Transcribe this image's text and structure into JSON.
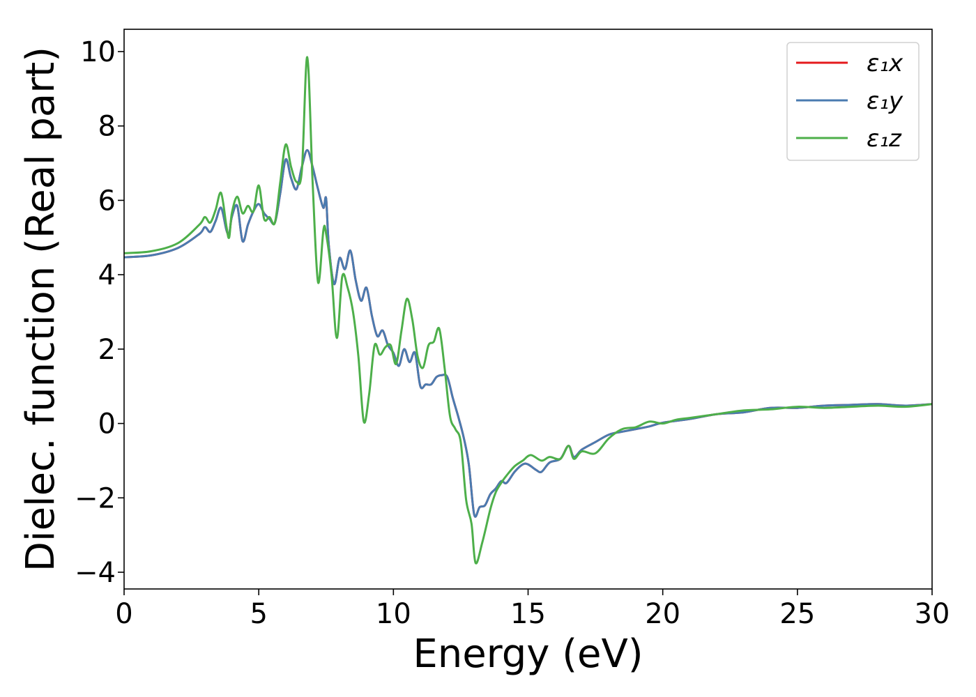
{
  "chart_data": {
    "type": "line",
    "xlabel": "Energy (eV)",
    "ylabel": "Dielec. function (Real part)",
    "xlim": [
      0,
      30
    ],
    "ylim": [
      -4.45,
      10.6
    ],
    "xticks": [
      0,
      5,
      10,
      15,
      20,
      25,
      30
    ],
    "yticks": [
      -4,
      -2,
      0,
      2,
      4,
      6,
      8,
      10
    ],
    "xtick_labels": [
      "0",
      "5",
      "10",
      "15",
      "20",
      "25",
      "30"
    ],
    "ytick_labels": [
      "−4",
      "−2",
      "0",
      "2",
      "4",
      "6",
      "8",
      "10"
    ],
    "grid": false,
    "legend_position": "top-right",
    "series": [
      {
        "name": "ε₁x",
        "color": "#e41a1c",
        "points": [
          [
            0,
            4.47
          ],
          [
            1,
            4.52
          ],
          [
            2,
            4.72
          ],
          [
            2.8,
            5.1
          ],
          [
            3.0,
            5.28
          ],
          [
            3.2,
            5.15
          ],
          [
            3.4,
            5.45
          ],
          [
            3.6,
            5.8
          ],
          [
            3.8,
            5.2
          ],
          [
            3.9,
            5.1
          ],
          [
            4.0,
            5.55
          ],
          [
            4.2,
            5.85
          ],
          [
            4.4,
            4.9
          ],
          [
            4.6,
            5.35
          ],
          [
            4.8,
            5.7
          ],
          [
            5.0,
            5.9
          ],
          [
            5.2,
            5.65
          ],
          [
            5.4,
            5.5
          ],
          [
            5.6,
            5.4
          ],
          [
            5.8,
            6.2
          ],
          [
            6.0,
            7.1
          ],
          [
            6.2,
            6.6
          ],
          [
            6.4,
            6.3
          ],
          [
            6.6,
            6.9
          ],
          [
            6.8,
            7.35
          ],
          [
            7.0,
            6.9
          ],
          [
            7.2,
            6.3
          ],
          [
            7.4,
            5.8
          ],
          [
            7.5,
            6.05
          ],
          [
            7.6,
            4.8
          ],
          [
            7.8,
            3.75
          ],
          [
            8.0,
            4.45
          ],
          [
            8.2,
            4.15
          ],
          [
            8.4,
            4.65
          ],
          [
            8.6,
            3.85
          ],
          [
            8.8,
            3.3
          ],
          [
            9.0,
            3.65
          ],
          [
            9.2,
            2.9
          ],
          [
            9.4,
            2.35
          ],
          [
            9.6,
            2.5
          ],
          [
            9.8,
            2.1
          ],
          [
            10.0,
            1.9
          ],
          [
            10.2,
            1.55
          ],
          [
            10.4,
            2.0
          ],
          [
            10.6,
            1.65
          ],
          [
            10.8,
            1.9
          ],
          [
            11.0,
            1.0
          ],
          [
            11.2,
            1.05
          ],
          [
            11.4,
            1.05
          ],
          [
            11.6,
            1.25
          ],
          [
            11.8,
            1.3
          ],
          [
            12.0,
            1.25
          ],
          [
            12.2,
            0.7
          ],
          [
            12.4,
            0.2
          ],
          [
            12.6,
            -0.35
          ],
          [
            12.8,
            -1.1
          ],
          [
            13.0,
            -2.45
          ],
          [
            13.2,
            -2.25
          ],
          [
            13.4,
            -2.2
          ],
          [
            13.6,
            -1.9
          ],
          [
            13.8,
            -1.75
          ],
          [
            14.0,
            -1.55
          ],
          [
            14.2,
            -1.6
          ],
          [
            14.5,
            -1.3
          ],
          [
            14.8,
            -1.1
          ],
          [
            15.0,
            -1.1
          ],
          [
            15.3,
            -1.25
          ],
          [
            15.5,
            -1.3
          ],
          [
            15.8,
            -1.05
          ],
          [
            16.2,
            -0.95
          ],
          [
            16.5,
            -0.6
          ],
          [
            16.7,
            -0.9
          ],
          [
            17.0,
            -0.7
          ],
          [
            17.5,
            -0.5
          ],
          [
            18.0,
            -0.3
          ],
          [
            18.5,
            -0.22
          ],
          [
            19.0,
            -0.15
          ],
          [
            19.5,
            -0.08
          ],
          [
            20.0,
            0.02
          ],
          [
            21.0,
            0.12
          ],
          [
            22.0,
            0.25
          ],
          [
            23.0,
            0.3
          ],
          [
            24.0,
            0.42
          ],
          [
            25.0,
            0.42
          ],
          [
            26.0,
            0.48
          ],
          [
            27.0,
            0.5
          ],
          [
            28.0,
            0.52
          ],
          [
            29.0,
            0.48
          ],
          [
            30.0,
            0.52
          ]
        ]
      },
      {
        "name": "ε₁y",
        "color": "#4a7bb0",
        "points": [
          [
            0,
            4.47
          ],
          [
            1,
            4.52
          ],
          [
            2,
            4.72
          ],
          [
            2.8,
            5.1
          ],
          [
            3.0,
            5.28
          ],
          [
            3.2,
            5.15
          ],
          [
            3.4,
            5.45
          ],
          [
            3.6,
            5.8
          ],
          [
            3.8,
            5.2
          ],
          [
            3.9,
            5.1
          ],
          [
            4.0,
            5.55
          ],
          [
            4.2,
            5.85
          ],
          [
            4.4,
            4.9
          ],
          [
            4.6,
            5.35
          ],
          [
            4.8,
            5.7
          ],
          [
            5.0,
            5.9
          ],
          [
            5.2,
            5.65
          ],
          [
            5.4,
            5.5
          ],
          [
            5.6,
            5.4
          ],
          [
            5.8,
            6.2
          ],
          [
            6.0,
            7.1
          ],
          [
            6.2,
            6.6
          ],
          [
            6.4,
            6.3
          ],
          [
            6.6,
            6.9
          ],
          [
            6.8,
            7.35
          ],
          [
            7.0,
            6.9
          ],
          [
            7.2,
            6.3
          ],
          [
            7.4,
            5.8
          ],
          [
            7.5,
            6.05
          ],
          [
            7.6,
            4.8
          ],
          [
            7.8,
            3.75
          ],
          [
            8.0,
            4.45
          ],
          [
            8.2,
            4.15
          ],
          [
            8.4,
            4.65
          ],
          [
            8.6,
            3.85
          ],
          [
            8.8,
            3.3
          ],
          [
            9.0,
            3.65
          ],
          [
            9.2,
            2.9
          ],
          [
            9.4,
            2.35
          ],
          [
            9.6,
            2.5
          ],
          [
            9.8,
            2.1
          ],
          [
            10.0,
            1.9
          ],
          [
            10.2,
            1.55
          ],
          [
            10.4,
            2.0
          ],
          [
            10.6,
            1.65
          ],
          [
            10.8,
            1.9
          ],
          [
            11.0,
            1.0
          ],
          [
            11.2,
            1.05
          ],
          [
            11.4,
            1.05
          ],
          [
            11.6,
            1.25
          ],
          [
            11.8,
            1.3
          ],
          [
            12.0,
            1.25
          ],
          [
            12.2,
            0.7
          ],
          [
            12.4,
            0.2
          ],
          [
            12.6,
            -0.35
          ],
          [
            12.8,
            -1.1
          ],
          [
            13.0,
            -2.45
          ],
          [
            13.2,
            -2.25
          ],
          [
            13.4,
            -2.2
          ],
          [
            13.6,
            -1.9
          ],
          [
            13.8,
            -1.75
          ],
          [
            14.0,
            -1.55
          ],
          [
            14.2,
            -1.6
          ],
          [
            14.5,
            -1.3
          ],
          [
            14.8,
            -1.1
          ],
          [
            15.0,
            -1.1
          ],
          [
            15.3,
            -1.25
          ],
          [
            15.5,
            -1.3
          ],
          [
            15.8,
            -1.05
          ],
          [
            16.2,
            -0.95
          ],
          [
            16.5,
            -0.6
          ],
          [
            16.7,
            -0.9
          ],
          [
            17.0,
            -0.7
          ],
          [
            17.5,
            -0.5
          ],
          [
            18.0,
            -0.3
          ],
          [
            18.5,
            -0.22
          ],
          [
            19.0,
            -0.15
          ],
          [
            19.5,
            -0.08
          ],
          [
            20.0,
            0.02
          ],
          [
            21.0,
            0.12
          ],
          [
            22.0,
            0.25
          ],
          [
            23.0,
            0.3
          ],
          [
            24.0,
            0.42
          ],
          [
            25.0,
            0.42
          ],
          [
            26.0,
            0.48
          ],
          [
            27.0,
            0.5
          ],
          [
            28.0,
            0.52
          ],
          [
            29.0,
            0.48
          ],
          [
            30.0,
            0.52
          ]
        ]
      },
      {
        "name": "ε₁z",
        "color": "#4daf4a",
        "points": [
          [
            0,
            4.58
          ],
          [
            1,
            4.63
          ],
          [
            2,
            4.85
          ],
          [
            2.8,
            5.35
          ],
          [
            3.0,
            5.55
          ],
          [
            3.2,
            5.4
          ],
          [
            3.4,
            5.75
          ],
          [
            3.6,
            6.2
          ],
          [
            3.8,
            5.3
          ],
          [
            3.9,
            5.0
          ],
          [
            4.0,
            5.65
          ],
          [
            4.2,
            6.1
          ],
          [
            4.4,
            5.65
          ],
          [
            4.6,
            5.85
          ],
          [
            4.8,
            5.7
          ],
          [
            5.0,
            6.4
          ],
          [
            5.2,
            5.5
          ],
          [
            5.4,
            5.55
          ],
          [
            5.6,
            5.4
          ],
          [
            5.8,
            6.5
          ],
          [
            6.0,
            7.5
          ],
          [
            6.2,
            6.9
          ],
          [
            6.4,
            6.5
          ],
          [
            6.6,
            6.8
          ],
          [
            6.8,
            9.85
          ],
          [
            7.0,
            6.5
          ],
          [
            7.2,
            3.8
          ],
          [
            7.4,
            5.2
          ],
          [
            7.5,
            5.1
          ],
          [
            7.7,
            4.0
          ],
          [
            7.9,
            2.3
          ],
          [
            8.1,
            3.95
          ],
          [
            8.3,
            3.65
          ],
          [
            8.5,
            3.0
          ],
          [
            8.7,
            1.8
          ],
          [
            8.9,
            0.05
          ],
          [
            9.1,
            0.8
          ],
          [
            9.3,
            2.1
          ],
          [
            9.5,
            1.85
          ],
          [
            9.7,
            2.05
          ],
          [
            9.9,
            2.1
          ],
          [
            10.1,
            1.6
          ],
          [
            10.3,
            2.5
          ],
          [
            10.5,
            3.35
          ],
          [
            10.7,
            2.8
          ],
          [
            10.9,
            1.8
          ],
          [
            11.1,
            1.5
          ],
          [
            11.3,
            2.1
          ],
          [
            11.5,
            2.2
          ],
          [
            11.7,
            2.55
          ],
          [
            11.9,
            1.5
          ],
          [
            12.1,
            0.2
          ],
          [
            12.3,
            -0.15
          ],
          [
            12.5,
            -0.5
          ],
          [
            12.7,
            -2.05
          ],
          [
            12.9,
            -2.7
          ],
          [
            13.05,
            -3.75
          ],
          [
            13.3,
            -3.2
          ],
          [
            13.6,
            -2.3
          ],
          [
            13.8,
            -1.85
          ],
          [
            14.0,
            -1.6
          ],
          [
            14.2,
            -1.4
          ],
          [
            14.5,
            -1.15
          ],
          [
            14.8,
            -1.0
          ],
          [
            15.1,
            -0.85
          ],
          [
            15.5,
            -1.0
          ],
          [
            15.8,
            -0.9
          ],
          [
            16.2,
            -0.95
          ],
          [
            16.5,
            -0.6
          ],
          [
            16.7,
            -0.95
          ],
          [
            17.0,
            -0.75
          ],
          [
            17.5,
            -0.8
          ],
          [
            18.0,
            -0.4
          ],
          [
            18.5,
            -0.15
          ],
          [
            19.0,
            -0.1
          ],
          [
            19.5,
            0.05
          ],
          [
            20.0,
            0.0
          ],
          [
            20.5,
            0.1
          ],
          [
            21.0,
            0.15
          ],
          [
            22.0,
            0.25
          ],
          [
            23.0,
            0.35
          ],
          [
            24.0,
            0.38
          ],
          [
            25.0,
            0.45
          ],
          [
            26.0,
            0.42
          ],
          [
            27.0,
            0.45
          ],
          [
            28.0,
            0.48
          ],
          [
            29.0,
            0.45
          ],
          [
            30.0,
            0.52
          ]
        ]
      }
    ]
  }
}
